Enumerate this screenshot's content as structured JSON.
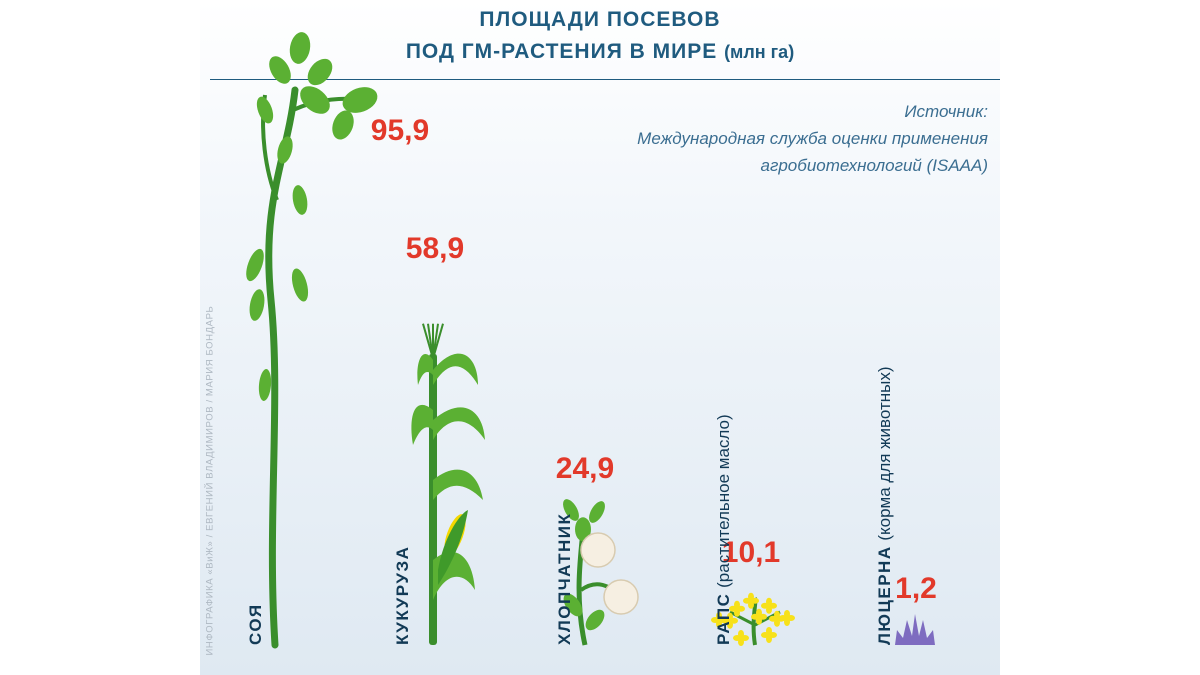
{
  "header": {
    "title_line1": "ПЛОЩАДИ ПОСЕВОВ",
    "title_line2": "ПОД ГМ-РАСТЕНИЯ В МИРЕ",
    "title_unit": "(млн га)"
  },
  "source": {
    "line1": "Источник:",
    "line2": "Международная служба оценки применения",
    "line3": "агробиотехнологий (ISAAA)"
  },
  "credit": "ИНФОГРАФИКА «ВиЖ» / ЕВГЕНИЙ ВЛАДИМИРОВ / МАРИЯ БОНДАРЬ",
  "colors": {
    "title": "#1f5b7f",
    "value": "#e2392a",
    "stem": "#3a8e2c",
    "leaf": "#5bb033",
    "corn_cob": "#f5d800",
    "rapeseed_flower": "#f7e11a",
    "alfalfa": "#7e6cc0",
    "cotton_boll": "#f6efe2"
  },
  "chart_data": {
    "type": "bar",
    "title": "ПЛОЩАДИ ПОСЕВОВ ПОД ГМ-РАСТЕНИЯ В МИРЕ (млн га)",
    "unit": "млн га",
    "categories": [
      "СОЯ",
      "КУКУРУЗА",
      "ХЛОПЧАТНИК",
      "РАПС",
      "ЛЮЦЕРНА"
    ],
    "category_notes": [
      "",
      "",
      "",
      "(растительное масло)",
      "(корма для животных)"
    ],
    "values": [
      95.9,
      58.9,
      24.9,
      10.1,
      1.2
    ],
    "value_labels": [
      "95,9",
      "58,9",
      "24,9",
      "10,1",
      "1,2"
    ],
    "bar_style": "plant illustrations",
    "ylim": [
      0,
      100
    ]
  }
}
